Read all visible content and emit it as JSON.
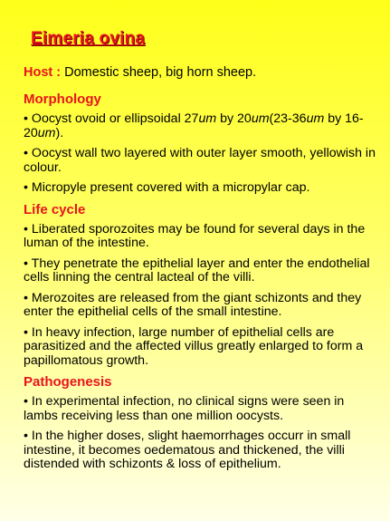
{
  "title": {
    "genus": "Eimeria",
    "species": "ovina"
  },
  "host": {
    "label": "Host :",
    "text": " Domestic sheep, big horn sheep."
  },
  "morphology": {
    "heading": "Morphology",
    "bullet1": {
      "a": "• Oocyst ovoid or ellipsoidal 27",
      "b": "um",
      "c": " by 20",
      "d": "um",
      "e": "(23-36",
      "f": "um",
      "g": " by 16-20",
      "h": "um",
      "i": ")."
    },
    "bullet2": "• Oocyst wall two layered with outer layer smooth, yellowish in colour.",
    "bullet3": "• Micropyle present covered with a micropylar cap."
  },
  "life_cycle": {
    "heading": "Life cycle",
    "bullets": [
      "• Liberated sporozoites may be found for several days in the luman of the intestine.",
      "• They penetrate the epithelial layer and enter the endothelial cells linning the central lacteal of the villi.",
      "• Merozoites are released from the giant schizonts and they enter the epithelial cells of the small intestine.",
      "• In heavy infection, large number of epithelial cells are parasitized and the affected villus greatly enlarged to form a papillomatous growth."
    ]
  },
  "pathogenesis": {
    "heading": "Pathogenesis",
    "bullets": [
      "• In experimental infection, no clinical signs were seen in lambs receiving less than one million oocysts.",
      "• In the higher doses, slight haemorrhages occurr in small intestine, it becomes oedematous and thickened, the villi distended with schizonts & loss of epithelium."
    ]
  }
}
